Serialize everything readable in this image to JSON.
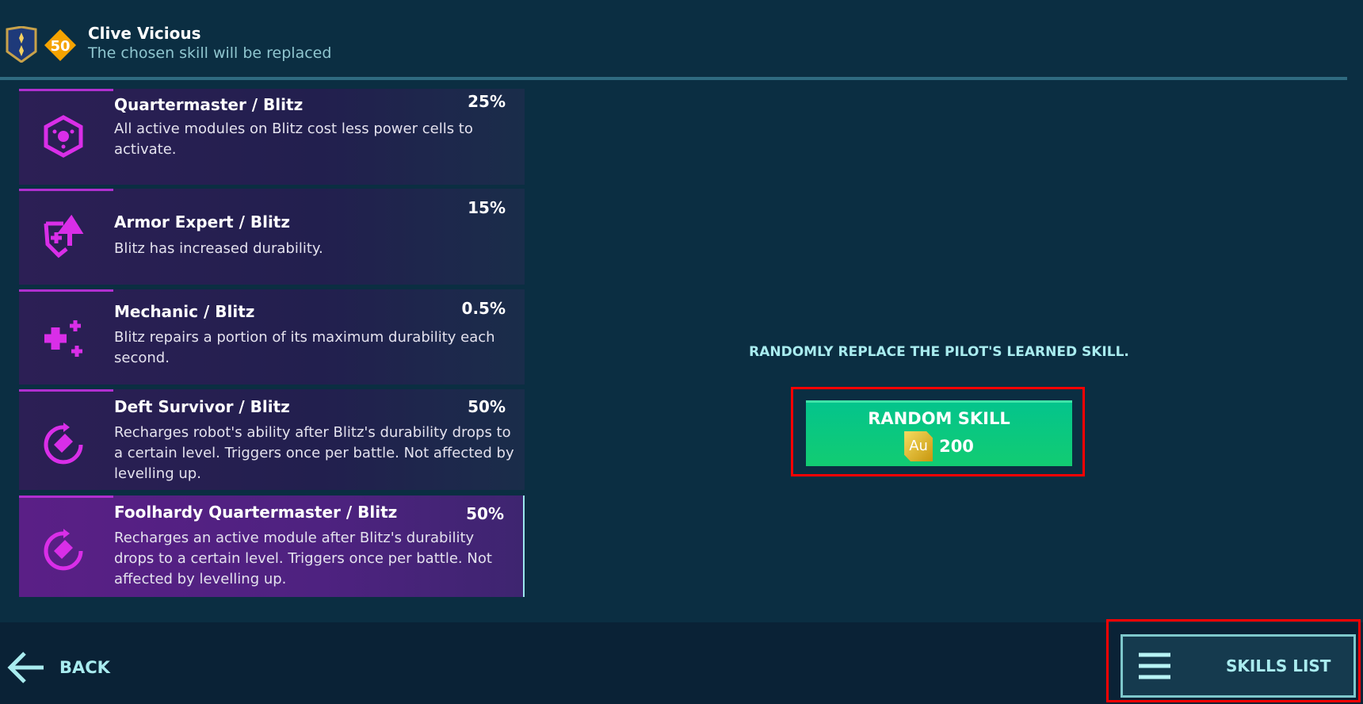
{
  "header": {
    "pilot_name": "Clive Vicious",
    "level": "50",
    "subtitle": "The chosen skill will be replaced"
  },
  "skills": [
    {
      "title": "Quartermaster / Blitz",
      "percent": "25%",
      "description": "All active modules on Blitz cost less power cells to activate.",
      "icon": "hexagon-module-icon"
    },
    {
      "title": "Armor Expert / Blitz",
      "percent": "15%",
      "description": "Blitz has increased durability.",
      "icon": "shield-plus-arrow-icon"
    },
    {
      "title": "Mechanic / Blitz",
      "percent": "0.5%",
      "description": "Blitz repairs a portion of its maximum durability each second.",
      "icon": "repair-plus-icon"
    },
    {
      "title": "Deft Survivor / Blitz",
      "percent": "50%",
      "description": "Recharges robot's ability after Blitz's durability drops to a certain level. Triggers once per battle. Not affected by levelling up.",
      "icon": "recharge-icon"
    },
    {
      "title": "Foolhardy Quartermaster / Blitz",
      "percent": "50%",
      "description": "Recharges an active module after Blitz's durability drops to a certain level. Triggers once per battle. Not affected by levelling up.",
      "icon": "recharge-icon",
      "selected": true
    }
  ],
  "main": {
    "message": "RANDOMLY REPLACE THE PILOT'S LEARNED SKILL.",
    "random_button": {
      "label": "RANDOM SKILL",
      "currency": "Au",
      "cost": "200"
    }
  },
  "footer": {
    "back_label": "BACK",
    "skills_list_label": "SKILLS LIST"
  },
  "colors": {
    "accent": "#d92ee8",
    "button": "#0ac680",
    "text_cyan": "#a9ecef",
    "background": "#0b2e42"
  }
}
